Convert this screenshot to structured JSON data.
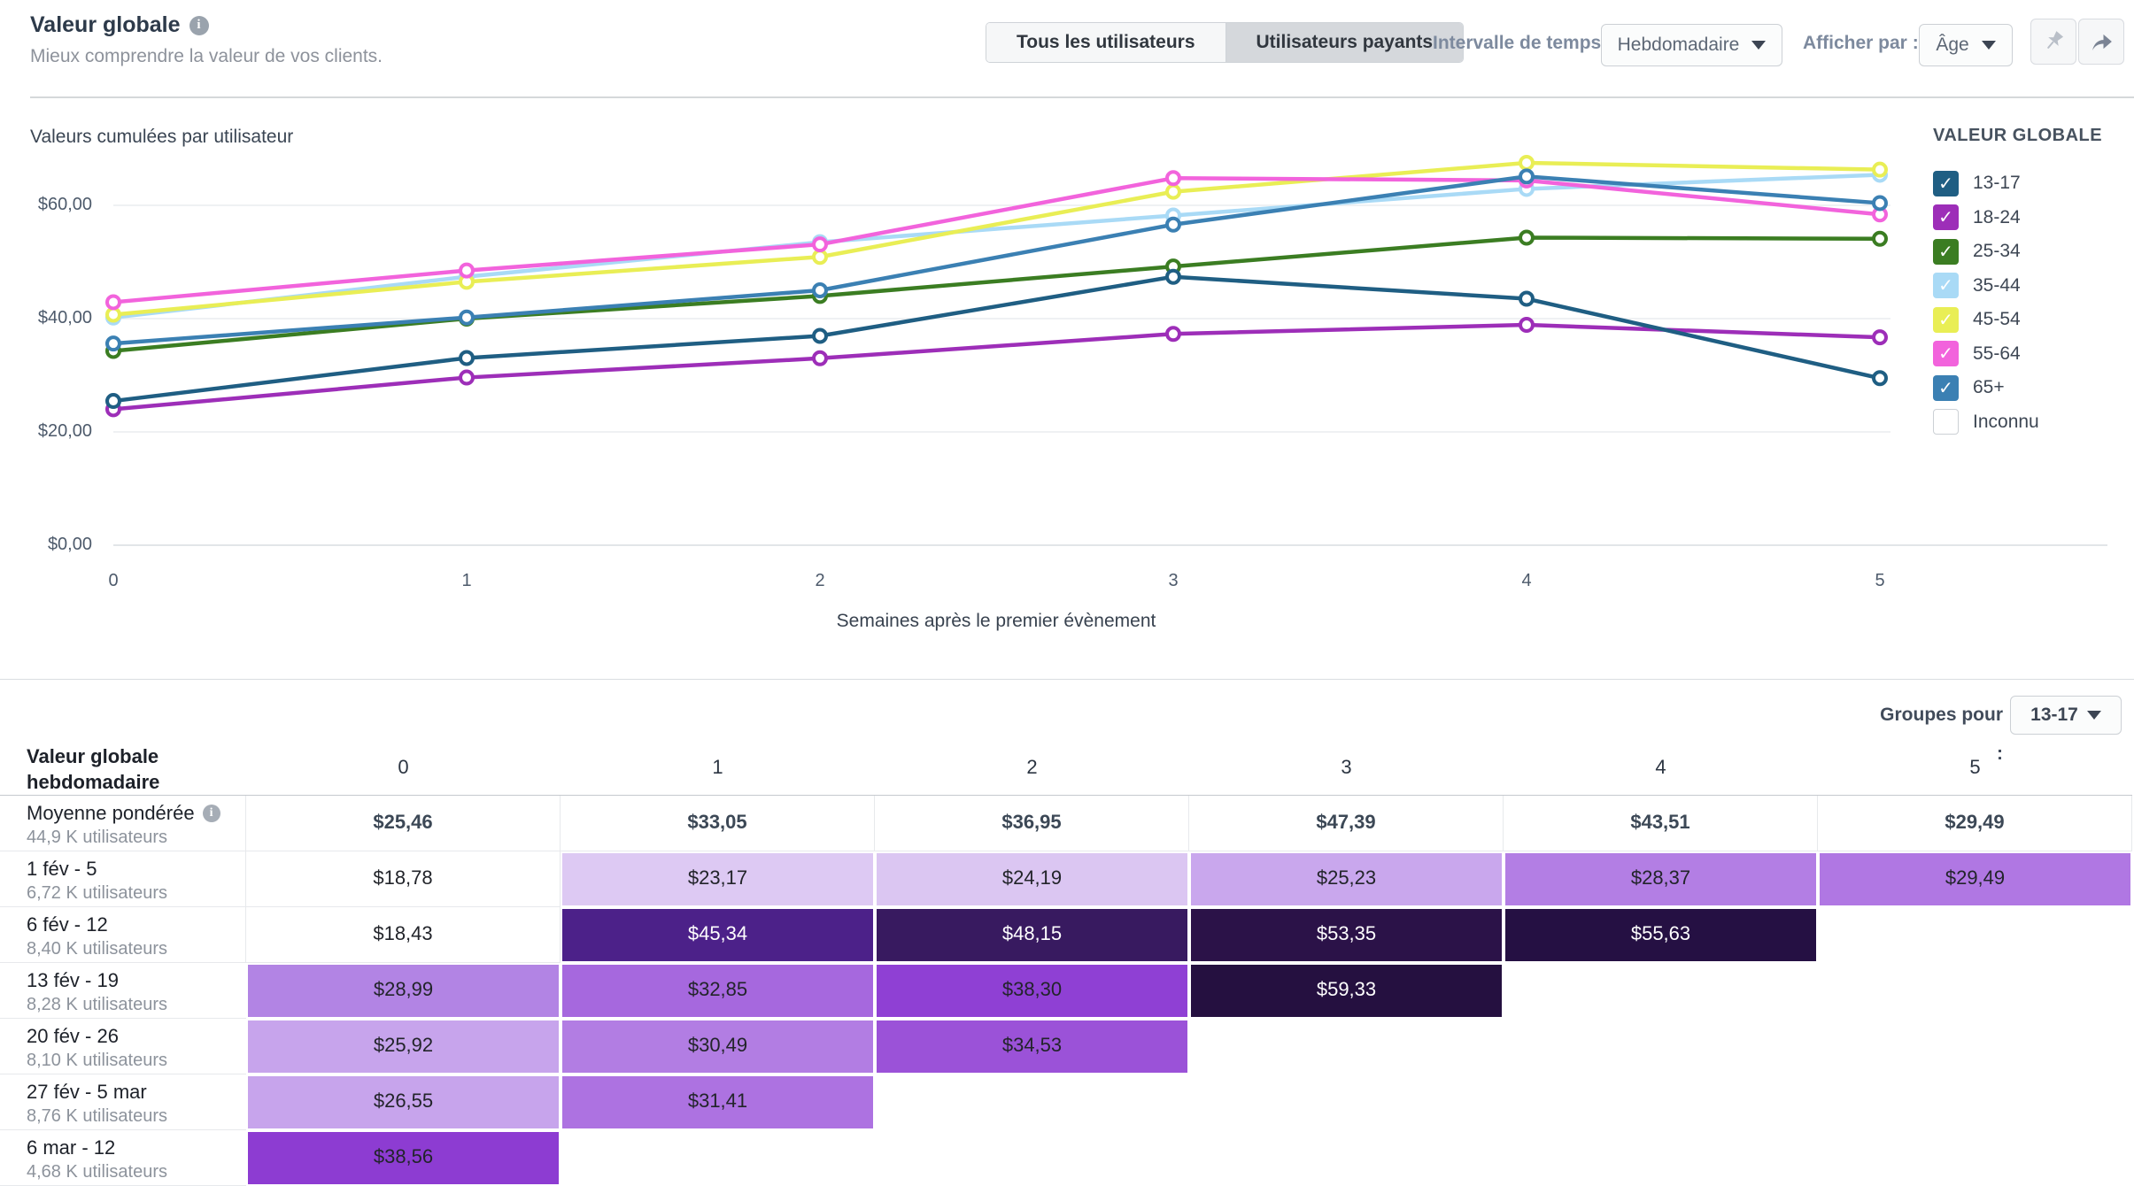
{
  "header": {
    "title": "Valeur globale",
    "subtitle": "Mieux comprendre la valeur de vos clients."
  },
  "controls": {
    "segments": [
      {
        "label": "Tous les utilisateurs",
        "selected": false
      },
      {
        "label": "Utilisateurs payants",
        "selected": true
      }
    ],
    "interval_label": "Intervalle de temps :",
    "interval_value": "Hebdomadaire",
    "display_label": "Afficher par :",
    "display_value": "Âge",
    "icons": [
      "pin-icon",
      "share-icon"
    ]
  },
  "chart_data": {
    "type": "line",
    "title": "Valeurs cumulées par utilisateur",
    "xlabel": "Semaines après le premier évènement",
    "legend_title": "VALEUR GLOBALE",
    "x": [
      0,
      1,
      2,
      3,
      4,
      5
    ],
    "x_tick_labels": [
      "0",
      "1",
      "2",
      "3",
      "4",
      "5"
    ],
    "ylim": [
      0,
      70
    ],
    "y_ticks": [
      {
        "value": 0,
        "label": "$0,00"
      },
      {
        "value": 20,
        "label": "$20,00"
      },
      {
        "value": 40,
        "label": "$40,00"
      },
      {
        "value": 60,
        "label": "$60,00"
      }
    ],
    "grid": true,
    "legend_position": "right",
    "series": [
      {
        "name": "13-17",
        "color": "#1f5e83",
        "checked": true,
        "values": [
          25.46,
          33.05,
          36.95,
          47.39,
          43.51,
          29.49
        ]
      },
      {
        "name": "18-24",
        "color": "#9d2eb8",
        "checked": true,
        "values": [
          24.0,
          29.6,
          33.0,
          37.3,
          38.9,
          36.7
        ]
      },
      {
        "name": "25-34",
        "color": "#3b7d22",
        "checked": true,
        "values": [
          34.3,
          40.0,
          44.0,
          49.2,
          54.3,
          54.1
        ]
      },
      {
        "name": "35-44",
        "color": "#a9daf6",
        "checked": true,
        "values": [
          40.2,
          47.4,
          53.5,
          58.2,
          62.9,
          65.4
        ]
      },
      {
        "name": "45-54",
        "color": "#e9ee55",
        "checked": true,
        "values": [
          40.7,
          46.5,
          50.9,
          62.4,
          67.5,
          66.3
        ]
      },
      {
        "name": "55-64",
        "color": "#f263dc",
        "checked": true,
        "values": [
          42.9,
          48.5,
          53.1,
          64.8,
          64.4,
          58.4
        ]
      },
      {
        "name": "65+",
        "color": "#3b80b3",
        "checked": true,
        "values": [
          35.6,
          40.2,
          45.0,
          56.6,
          65.1,
          60.4
        ]
      },
      {
        "name": "Inconnu",
        "color": "#ffffff",
        "checked": false,
        "values": null
      }
    ]
  },
  "table": {
    "groups_label": "Groupes pour :",
    "groups_value": "13-17",
    "corner_header": "Valeur globale hebdomadaire",
    "col_headers": [
      "0",
      "1",
      "2",
      "3",
      "4",
      "5"
    ],
    "rows": [
      {
        "label": "Moyenne pondérée",
        "info": true,
        "sub": "44,9 K utilisateurs",
        "bold": true,
        "cells": [
          {
            "v": "$25,46"
          },
          {
            "v": "$33,05"
          },
          {
            "v": "$36,95"
          },
          {
            "v": "$47,39"
          },
          {
            "v": "$43,51"
          },
          {
            "v": "$29,49"
          }
        ]
      },
      {
        "label": "1 fév - 5",
        "sub": "6,72 K utilisateurs",
        "cells": [
          {
            "v": "$18,78"
          },
          {
            "v": "$23,17",
            "bg": "#ddc9f3"
          },
          {
            "v": "$24,19",
            "bg": "#dbc6f2"
          },
          {
            "v": "$25,23",
            "bg": "#c9a7ed"
          },
          {
            "v": "$28,37",
            "bg": "#b37ee4"
          },
          {
            "v": "$29,49",
            "bg": "#b077e3"
          }
        ]
      },
      {
        "label": "6 fév - 12",
        "sub": "8,40 K utilisateurs",
        "cells": [
          {
            "v": "$18,43"
          },
          {
            "v": "$45,34",
            "bg": "#4c2189",
            "light": true
          },
          {
            "v": "$48,15",
            "bg": "#381a60",
            "light": true
          },
          {
            "v": "$53,35",
            "bg": "#2b1248",
            "light": true
          },
          {
            "v": "$55,63",
            "bg": "#251043",
            "light": true
          },
          null
        ]
      },
      {
        "label": "13 fév - 19",
        "sub": "8,28 K utilisateurs",
        "cells": [
          {
            "v": "$28,99",
            "bg": "#b284e4"
          },
          {
            "v": "$32,85",
            "bg": "#a668de"
          },
          {
            "v": "$38,30",
            "bg": "#8f40d4"
          },
          {
            "v": "$59,33",
            "bg": "#251040",
            "light": true
          },
          null,
          null
        ]
      },
      {
        "label": "20 fév - 26",
        "sub": "8,10 K utilisateurs",
        "cells": [
          {
            "v": "$25,92",
            "bg": "#c7a4ec"
          },
          {
            "v": "$30,49",
            "bg": "#b27de3"
          },
          {
            "v": "$34,53",
            "bg": "#9b52d8"
          },
          null,
          null,
          null
        ]
      },
      {
        "label": "27 fév - 5 mar",
        "sub": "8,76 K utilisateurs",
        "cells": [
          {
            "v": "$26,55",
            "bg": "#c7a4ec"
          },
          {
            "v": "$31,41",
            "bg": "#ad72e1"
          },
          null,
          null,
          null,
          null
        ]
      },
      {
        "label": "6 mar - 12",
        "sub": "4,68 K utilisateurs",
        "cells": [
          {
            "v": "$38,56",
            "bg": "#8d3cd2"
          },
          null,
          null,
          null,
          null,
          null
        ]
      }
    ]
  }
}
